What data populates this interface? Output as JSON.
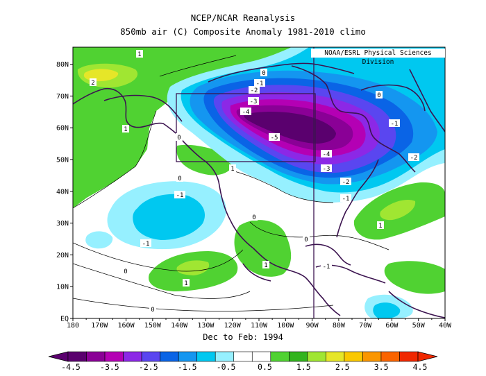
{
  "title": "NCEP/NCAR Reanalysis",
  "subtitle": "850mb air (C) Composite Anomaly 1981-2010 climo",
  "credit": "NOAA/ESRL Physical Sciences Division",
  "period": "Dec to Feb: 1994",
  "lon_labels": [
    "180",
    "170W",
    "160W",
    "150W",
    "140W",
    "130W",
    "120W",
    "110W",
    "100W",
    "90W",
    "80W",
    "70W",
    "60W",
    "50W",
    "40W"
  ],
  "lat_labels": [
    "EQ",
    "10N",
    "20N",
    "30N",
    "40N",
    "50N",
    "60N",
    "70N",
    "80N"
  ],
  "colorbar": {
    "labels": [
      "-4.5",
      "-3.5",
      "-2.5",
      "-1.5",
      "-0.5",
      "0.5",
      "1.5",
      "2.5",
      "3.5",
      "4.5"
    ],
    "colors": [
      "#5a006e",
      "#8a0096",
      "#b400b4",
      "#8c28e6",
      "#5a46f0",
      "#0a64e6",
      "#1496f0",
      "#00c8f0",
      "#96f0ff",
      "#ffffff",
      "#ffffff",
      "#50d232",
      "#32b41e",
      "#a0e632",
      "#e6e628",
      "#fac800",
      "#fa9600",
      "#fa6400",
      "#f02800"
    ]
  },
  "contour_labels": [
    {
      "text": "1"
    },
    {
      "text": "2"
    },
    {
      "text": "1"
    },
    {
      "text": "0"
    },
    {
      "text": "-1"
    },
    {
      "text": "-2"
    },
    {
      "text": "-3"
    },
    {
      "text": "-4"
    },
    {
      "text": "-5"
    },
    {
      "text": "-4"
    },
    {
      "text": "-3"
    },
    {
      "text": "-2"
    },
    {
      "text": "-1"
    },
    {
      "text": "0"
    },
    {
      "text": "-1"
    },
    {
      "text": "-2"
    },
    {
      "text": "0"
    },
    {
      "text": "1"
    },
    {
      "text": "0"
    },
    {
      "text": "-1"
    },
    {
      "text": "-1"
    },
    {
      "text": "0"
    },
    {
      "text": "1"
    },
    {
      "text": "1"
    },
    {
      "text": "0"
    },
    {
      "text": "0"
    },
    {
      "text": "0"
    },
    {
      "text": "1"
    },
    {
      "text": "-1"
    }
  ]
}
